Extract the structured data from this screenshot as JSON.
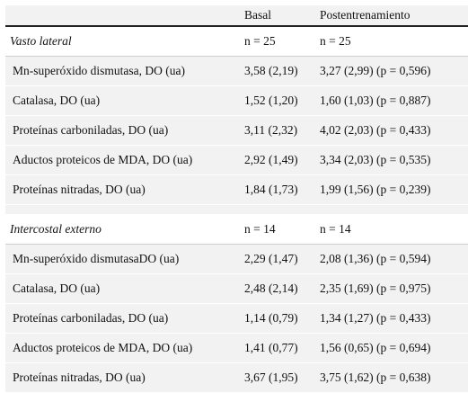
{
  "table": {
    "headers": [
      "",
      "Basal",
      "Postentrenamiento"
    ],
    "sections": [
      {
        "title": "Vasto lateral",
        "n_basal": "n = 25",
        "n_post": "n = 25",
        "rows": [
          {
            "label": "Mn-superóxido dismutasa, DO (ua)",
            "basal": "3,58 (2,19)",
            "post": "3,27 (2,99) (p = 0,596)"
          },
          {
            "label": "Catalasa, DO (ua)",
            "basal": "1,52 (1,20)",
            "post": "1,60 (1,03) (p = 0,887)"
          },
          {
            "label": "Proteínas carboniladas, DO (ua)",
            "basal": "3,11 (2,32)",
            "post": "4,02 (2,03) (p = 0,433)"
          },
          {
            "label": "Aductos proteicos de MDA, DO (ua)",
            "basal": "2,92 (1,49)",
            "post": "3,34 (2,03) (p = 0,535)"
          },
          {
            "label": "Proteínas nitradas, DO (ua)",
            "basal": "1,84 (1,73)",
            "post": "1,99 (1,56) (p = 0,239)"
          }
        ]
      },
      {
        "title": "Intercostal externo",
        "n_basal": "n = 14",
        "n_post": "n = 14",
        "rows": [
          {
            "label": "Mn-superóxido dismutasaDO (ua)",
            "basal": "2,29 (1,47)",
            "post": "2,08 (1,36) (p = 0,594)"
          },
          {
            "label": "Catalasa, DO (ua)",
            "basal": "2,48 (2,14)",
            "post": "2,35 (1,69) (p = 0,975)"
          },
          {
            "label": "Proteínas carboniladas, DO (ua)",
            "basal": "1,14 (0,79)",
            "post": "1,34 (1,27) (p = 0,433)"
          },
          {
            "label": "Aductos proteicos de MDA, DO (ua)",
            "basal": "1,41 (0,77)",
            "post": "1,56 (0,65) (p = 0,694)"
          },
          {
            "label": "Proteínas nitradas, DO (ua)",
            "basal": "3,67 (1,95)",
            "post": "3,75 (1,62) (p = 0,638)"
          }
        ]
      }
    ]
  }
}
